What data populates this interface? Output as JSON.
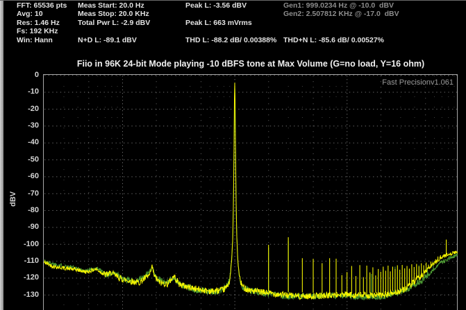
{
  "header": {
    "col1": [
      "FFT: 65536 pts",
      "Avg: 10",
      "Res: 1.46 Hz",
      "Fs: 192 KHz",
      "Win: Hann"
    ],
    "col2": [
      "Meas Start: 20.0 Hz",
      "Meas Stop: 20.0 KHz",
      "Total Pwr L: -2.9 dBV",
      "",
      "N+D L: -89.1 dBV"
    ],
    "col3": [
      "Peak L: -3.56 dBV",
      "",
      "Peak L: 663 mVrms",
      "",
      "THD L: -88.2 dB/ 0.00388%"
    ],
    "col4": [
      "Gen1: 999.0234 Hz @ -10.0  dBV",
      "Gen2: 2.507812 KHz @ -17.0  dBV",
      "",
      "",
      "THD+N L: -85.6 dB/ 0.00527%"
    ]
  },
  "title": "Fiio in 96K 24-bit Mode playing -10 dBFS tone at Max Volume (G=no load, Y=16 ohm)",
  "watermark": "Fast Precisionv1.061",
  "y_axis": {
    "label": "dBV",
    "ticks": [
      "0",
      "-10",
      "-20",
      "-30",
      "-40",
      "-50",
      "-60",
      "-70",
      "-80",
      "-90",
      "-100",
      "-110",
      "-120",
      "-130"
    ]
  },
  "chart_data": {
    "type": "line",
    "title": "Fiio in 96K 24-bit Mode playing -10 dBFS tone at Max Volume (G=no load, Y=16 ohm)",
    "ylabel": "dBV",
    "grid": "dotted",
    "x_axis": {
      "scale": "log",
      "unit": "Hz",
      "min": 20,
      "max": 96000,
      "major_gridlines_hz": [
        100,
        1000,
        10000
      ],
      "mid_gridlines_hz": [
        50,
        200,
        500,
        2000,
        5000,
        20000,
        50000
      ],
      "minor_gridlines_hz": [
        30,
        40,
        60,
        70,
        80,
        90,
        300,
        400,
        600,
        700,
        800,
        900,
        3000,
        4000,
        6000,
        7000,
        8000,
        9000,
        30000,
        40000,
        60000,
        70000,
        80000,
        90000
      ]
    },
    "y_axis": {
      "unit": "dBV",
      "max": 0,
      "min": -130,
      "tick_step": 10
    },
    "fundamental": {
      "hz": 999.0234,
      "level_dbv": -3.56
    },
    "series": [
      {
        "name": "G=no load",
        "color": "#4d9b33",
        "jitter_seed": 1337,
        "envelope_db_by_hz": [
          [
            20,
            -109.3
          ],
          [
            26,
            -112
          ],
          [
            34,
            -114
          ],
          [
            46,
            -116.8
          ],
          [
            60,
            -115
          ],
          [
            72,
            -118.5
          ],
          [
            85,
            -117.2
          ],
          [
            100,
            -120.8
          ],
          [
            130,
            -122.2
          ],
          [
            160,
            -119.5
          ],
          [
            183,
            -114.5
          ],
          [
            200,
            -121
          ],
          [
            240,
            -123.8
          ],
          [
            285,
            -121
          ],
          [
            340,
            -125
          ],
          [
            450,
            -126.8
          ],
          [
            700,
            -127.6
          ],
          [
            860,
            -124.2
          ],
          [
            900,
            -120
          ],
          [
            935,
            -110
          ],
          [
            960,
            -95
          ],
          [
            975,
            -72
          ],
          [
            988,
            -35
          ],
          [
            999,
            -4.2
          ],
          [
            1010,
            -35
          ],
          [
            1024,
            -72
          ],
          [
            1040,
            -95
          ],
          [
            1065,
            -110
          ],
          [
            1100,
            -120
          ],
          [
            1160,
            -125
          ],
          [
            1400,
            -127.8
          ],
          [
            2500,
            -129.3
          ],
          [
            6000,
            -130.2
          ],
          [
            12000,
            -130.6
          ],
          [
            20000,
            -130.2
          ],
          [
            28000,
            -128.9
          ],
          [
            36000,
            -126.6
          ],
          [
            45000,
            -123.2
          ],
          [
            55000,
            -117.8
          ],
          [
            68000,
            -111.8
          ],
          [
            82000,
            -108.2
          ],
          [
            96000,
            -106.6
          ]
        ],
        "spurs_db_by_hz": [
          [
            183,
            -113.6
          ],
          [
            1998,
            -102
          ],
          [
            2997,
            -98
          ],
          [
            16500,
            -117.5
          ],
          [
            21000,
            -114.8
          ],
          [
            26800,
            -113.2
          ],
          [
            34200,
            -114.6
          ],
          [
            43700,
            -112.4
          ],
          [
            52000,
            -113.6
          ],
          [
            58600,
            -112
          ]
        ]
      },
      {
        "name": "Y=16 ohm",
        "color": "#f5f500",
        "jitter_seed": 42,
        "envelope_db_by_hz": [
          [
            20,
            -110
          ],
          [
            24,
            -112.5
          ],
          [
            30,
            -114
          ],
          [
            38,
            -115.5
          ],
          [
            48,
            -117.5
          ],
          [
            58,
            -115.8
          ],
          [
            70,
            -119
          ],
          [
            80,
            -117.8
          ],
          [
            95,
            -120.5
          ],
          [
            115,
            -121.8
          ],
          [
            140,
            -122.8
          ],
          [
            162,
            -120
          ],
          [
            176,
            -118.5
          ],
          [
            183,
            -113.2
          ],
          [
            192,
            -119.5
          ],
          [
            215,
            -123.5
          ],
          [
            252,
            -124.5
          ],
          [
            287,
            -119.8
          ],
          [
            320,
            -124.5
          ],
          [
            370,
            -125.8
          ],
          [
            460,
            -126.6
          ],
          [
            620,
            -127.2
          ],
          [
            780,
            -126.4
          ],
          [
            850,
            -124.6
          ],
          [
            888,
            -122
          ],
          [
            915,
            -117
          ],
          [
            938,
            -109
          ],
          [
            958,
            -97
          ],
          [
            972,
            -76
          ],
          [
            983,
            -46
          ],
          [
            991,
            -16
          ],
          [
            999,
            -3.56
          ],
          [
            1007,
            -16
          ],
          [
            1016,
            -46
          ],
          [
            1028,
            -76
          ],
          [
            1043,
            -97
          ],
          [
            1064,
            -109
          ],
          [
            1090,
            -117
          ],
          [
            1125,
            -122
          ],
          [
            1175,
            -124.8
          ],
          [
            1320,
            -127
          ],
          [
            1700,
            -128.4
          ],
          [
            2400,
            -128.9
          ],
          [
            4000,
            -129.4
          ],
          [
            7000,
            -129.9
          ],
          [
            11000,
            -130.1
          ],
          [
            16000,
            -129.9
          ],
          [
            21000,
            -129.4
          ],
          [
            27000,
            -128.4
          ],
          [
            33000,
            -126.6
          ],
          [
            40000,
            -123
          ],
          [
            47000,
            -119
          ],
          [
            55000,
            -114.5
          ],
          [
            63000,
            -110.8
          ],
          [
            72000,
            -108
          ],
          [
            82000,
            -106.2
          ],
          [
            96000,
            -105
          ]
        ],
        "spurs_db_by_hz": [
          [
            183,
            -113
          ],
          [
            290,
            -119.5
          ],
          [
            1998,
            -100.3
          ],
          [
            2997,
            -95.8
          ],
          [
            3996,
            -108.2
          ],
          [
            4995,
            -108.6
          ],
          [
            5994,
            -111.2
          ],
          [
            6993,
            -108.2
          ],
          [
            7992,
            -108.5
          ],
          [
            8991,
            -118.2
          ],
          [
            9990,
            -116.4
          ],
          [
            10989,
            -112.8
          ],
          [
            11988,
            -118.8
          ],
          [
            12987,
            -112.3
          ],
          [
            13986,
            -119.4
          ],
          [
            14985,
            -112.6
          ],
          [
            15984,
            -116.6
          ],
          [
            16983,
            -113.6
          ],
          [
            17982,
            -118.4
          ],
          [
            18981,
            -114.6
          ],
          [
            19980,
            -116.2
          ],
          [
            21000,
            -113.2
          ],
          [
            22100,
            -115.6
          ],
          [
            23200,
            -112.6
          ],
          [
            24300,
            -116
          ],
          [
            25500,
            -113.2
          ],
          [
            26800,
            -114.6
          ],
          [
            28100,
            -112.4
          ],
          [
            29500,
            -115
          ],
          [
            31000,
            -112.2
          ],
          [
            32600,
            -114.2
          ],
          [
            34200,
            -112.8
          ],
          [
            35900,
            -114.4
          ],
          [
            37700,
            -111.8
          ],
          [
            39600,
            -113.4
          ],
          [
            41600,
            -111.6
          ],
          [
            43700,
            -113
          ],
          [
            45900,
            -111.2
          ],
          [
            48200,
            -112.4
          ],
          [
            50600,
            -110.8
          ],
          [
            53100,
            -112
          ],
          [
            55800,
            -110.2
          ],
          [
            58600,
            -111
          ],
          [
            61500,
            -108.8
          ],
          [
            64500,
            -107.2
          ],
          [
            68000,
            -106.4
          ],
          [
            76500,
            -97.2
          ]
        ]
      }
    ]
  }
}
